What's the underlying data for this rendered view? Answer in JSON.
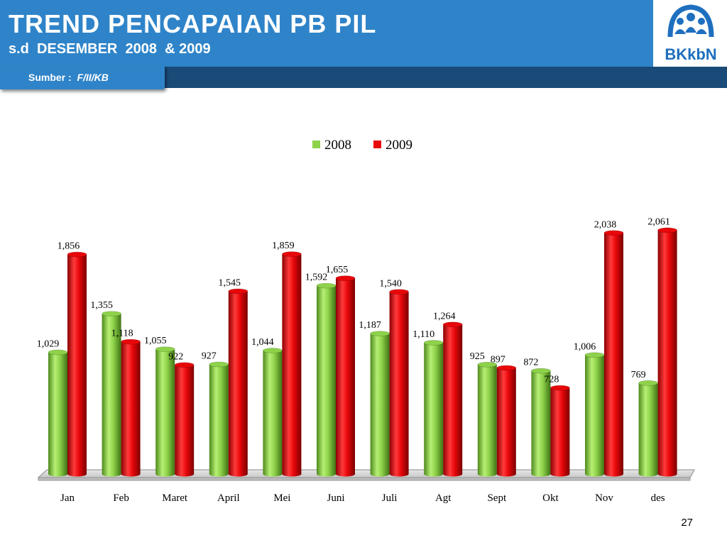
{
  "header": {
    "title": "TREND PENCAPAIAN PB PIL",
    "subtitle": "s.d  DESEMBER  2008  & 2009",
    "source_label": "Sumber :  ",
    "source_value": "F/II/KB",
    "logo_text": "BKkbN"
  },
  "page_number": "27",
  "colors": {
    "header_blue": "#2f84c9",
    "band_dark": "#1a4a78",
    "series_2008": "#8ed24a",
    "series_2009": "#e8070a"
  },
  "chart_data": {
    "type": "bar",
    "categories": [
      "Jan",
      "Feb",
      "Maret",
      "April",
      "Mei",
      "Juni",
      "Juli",
      "Agt",
      "Sept",
      "Okt",
      "Nov",
      "des"
    ],
    "series": [
      {
        "name": "2008",
        "color": "#8ed24a",
        "values": [
          1029,
          1355,
          1055,
          927,
          1044,
          1592,
          1187,
          1110,
          925,
          872,
          1006,
          769
        ],
        "labels": [
          "1,029",
          "1,355",
          "1,055",
          "927",
          "1,044",
          "1,592",
          "1,187",
          "1,110",
          "925",
          "872",
          "1,006",
          "769"
        ]
      },
      {
        "name": "2009",
        "color": "#e8070a",
        "values": [
          1856,
          1118,
          922,
          1545,
          1859,
          1655,
          1540,
          1264,
          897,
          728,
          2038,
          2061
        ],
        "labels": [
          "1,856",
          "1,118",
          "922",
          "1,545",
          "1,859",
          "1,655",
          "1,540",
          "1,264",
          "897",
          "728",
          "2,038",
          "2,061"
        ]
      }
    ],
    "legend_position": "top-center",
    "style": "3d-cylinder",
    "grid": false
  }
}
